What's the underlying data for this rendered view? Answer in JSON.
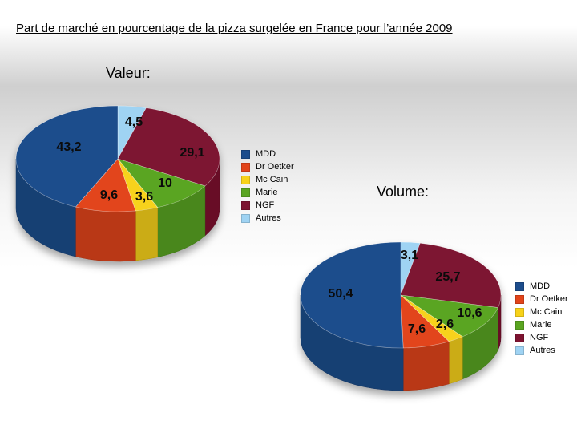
{
  "page": {
    "title": "Part de marché en pourcentage de la pizza surgelée en France pour l’année 2009"
  },
  "colors": {
    "MDD": "#1d4d8c",
    "Dr Oetker": "#e2441a",
    "Mc Cain": "#f7d21a",
    "Marie": "#5aa521",
    "NGF": "#7d1330",
    "Autres": "#9fd3f3"
  },
  "chart_data": [
    {
      "type": "pie",
      "title": "Valeur:",
      "labels": [
        "MDD",
        "Dr Oetker",
        "Mc Cain",
        "Marie",
        "NGF",
        "Autres"
      ],
      "values": [
        43.2,
        9.6,
        3.6,
        10,
        29.1,
        4.5
      ],
      "data_labels": [
        "43,2",
        "9,6",
        "3,6",
        "10",
        "29,1",
        "4,5"
      ],
      "legend_position": "right",
      "style": "3d"
    },
    {
      "type": "pie",
      "title": "Volume:",
      "labels": [
        "MDD",
        "Dr Oetker",
        "Mc Cain",
        "Marie",
        "NGF",
        "Autres"
      ],
      "values": [
        50.4,
        7.6,
        2.6,
        10.6,
        25.7,
        3.1
      ],
      "data_labels": [
        "50,4",
        "7,6",
        "2,6",
        "10,6",
        "25,7",
        "3,1"
      ],
      "legend_position": "right",
      "style": "3d"
    }
  ]
}
